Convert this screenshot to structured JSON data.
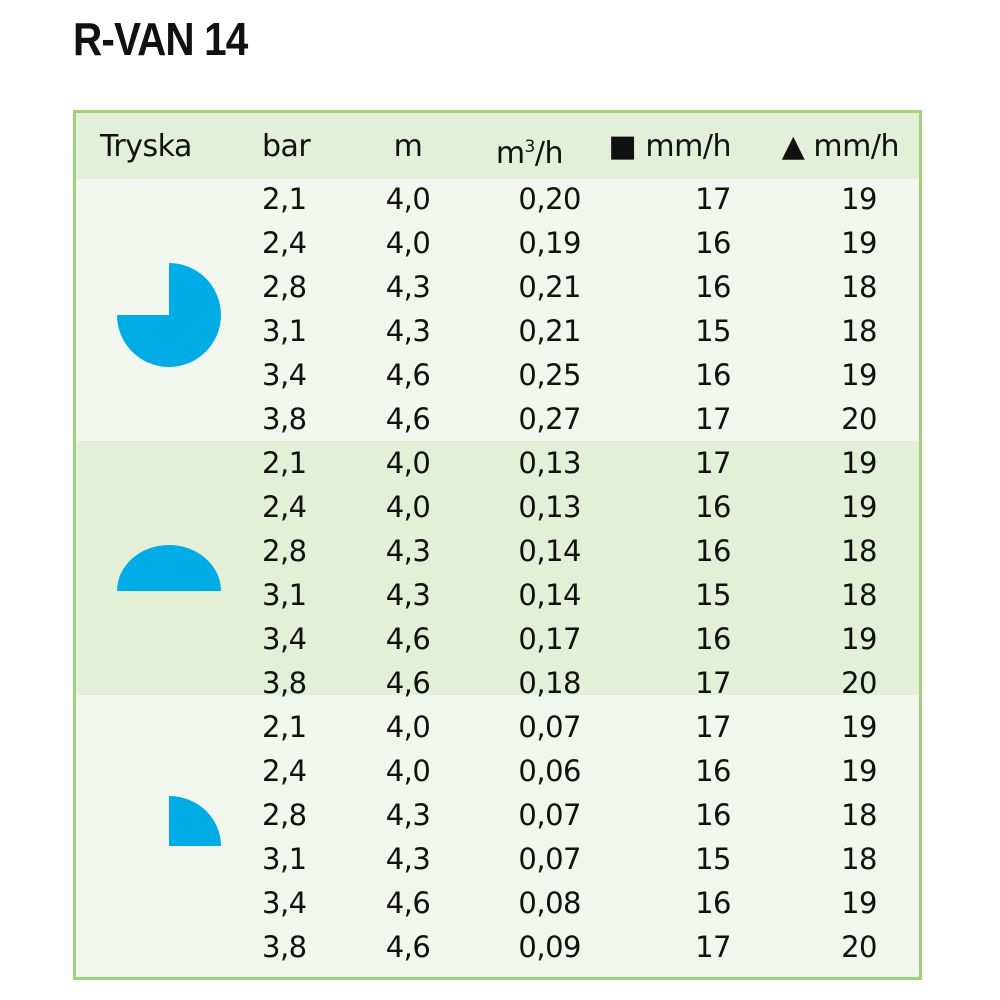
{
  "title": "R-VAN 14",
  "colors": {
    "border": "#9fd17a",
    "header_bg": "#e3efd9",
    "band_light": "#f1f7ee",
    "band_dark": "#e3efd6",
    "nozzle_shape": "#00ace6"
  },
  "headers": {
    "nozzle": "Tryska",
    "bar": "bar",
    "m": "m",
    "flow": "m³/h",
    "square_icon": "■",
    "square_rate": "mm/h",
    "triangle_icon": "▲",
    "triangle_rate": "mm/h"
  },
  "groups": [
    {
      "nozzle_icon": "three-quarter-circle-270-degree",
      "rows": [
        {
          "bar": "2,1",
          "m": "4,0",
          "flow": "0,20",
          "sq": "17",
          "tr": "19"
        },
        {
          "bar": "2,4",
          "m": "4,0",
          "flow": "0,19",
          "sq": "16",
          "tr": "19"
        },
        {
          "bar": "2,8",
          "m": "4,3",
          "flow": "0,21",
          "sq": "16",
          "tr": "18"
        },
        {
          "bar": "3,1",
          "m": "4,3",
          "flow": "0,21",
          "sq": "15",
          "tr": "18"
        },
        {
          "bar": "3,4",
          "m": "4,6",
          "flow": "0,25",
          "sq": "16",
          "tr": "19"
        },
        {
          "bar": "3,8",
          "m": "4,6",
          "flow": "0,27",
          "sq": "17",
          "tr": "20"
        }
      ]
    },
    {
      "nozzle_icon": "half-circle-180-degree",
      "rows": [
        {
          "bar": "2,1",
          "m": "4,0",
          "flow": "0,13",
          "sq": "17",
          "tr": "19"
        },
        {
          "bar": "2,4",
          "m": "4,0",
          "flow": "0,13",
          "sq": "16",
          "tr": "19"
        },
        {
          "bar": "2,8",
          "m": "4,3",
          "flow": "0,14",
          "sq": "16",
          "tr": "18"
        },
        {
          "bar": "3,1",
          "m": "4,3",
          "flow": "0,14",
          "sq": "15",
          "tr": "18"
        },
        {
          "bar": "3,4",
          "m": "4,6",
          "flow": "0,17",
          "sq": "16",
          "tr": "19"
        },
        {
          "bar": "3,8",
          "m": "4,6",
          "flow": "0,18",
          "sq": "17",
          "tr": "20"
        }
      ]
    },
    {
      "nozzle_icon": "quarter-circle-90-degree",
      "rows": [
        {
          "bar": "2,1",
          "m": "4,0",
          "flow": "0,07",
          "sq": "17",
          "tr": "19"
        },
        {
          "bar": "2,4",
          "m": "4,0",
          "flow": "0,06",
          "sq": "16",
          "tr": "19"
        },
        {
          "bar": "2,8",
          "m": "4,3",
          "flow": "0,07",
          "sq": "16",
          "tr": "18"
        },
        {
          "bar": "3,1",
          "m": "4,3",
          "flow": "0,07",
          "sq": "15",
          "tr": "18"
        },
        {
          "bar": "3,4",
          "m": "4,6",
          "flow": "0,08",
          "sq": "16",
          "tr": "19"
        },
        {
          "bar": "3,8",
          "m": "4,6",
          "flow": "0,09",
          "sq": "17",
          "tr": "20"
        }
      ]
    }
  ]
}
